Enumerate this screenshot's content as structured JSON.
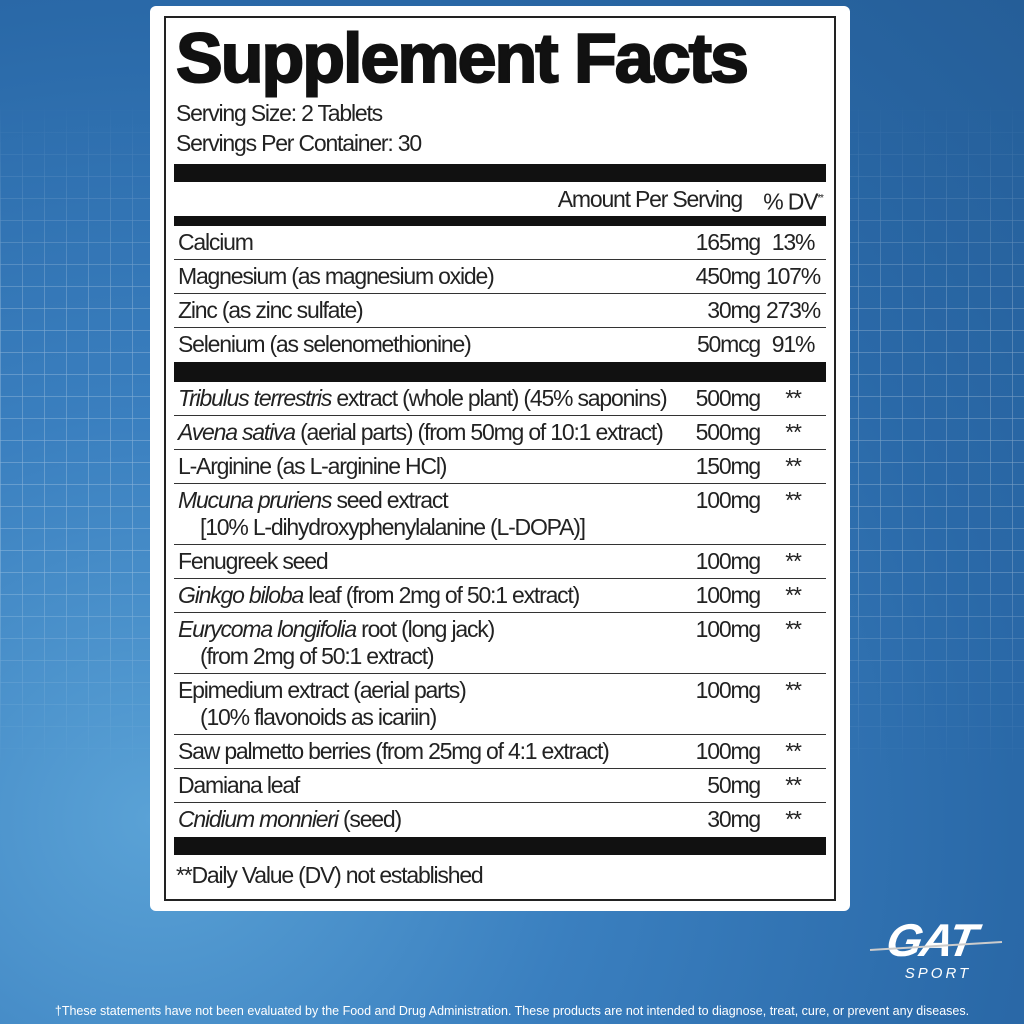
{
  "title": "Supplement Facts",
  "serving_size": "Serving Size: 2 Tablets",
  "servings_per_container": "Servings Per Container: 30",
  "header": {
    "amount": "Amount Per Serving",
    "dv": "% DV",
    "dv_mark": "**"
  },
  "minerals": [
    {
      "name": "Calcium",
      "amount": "165mg",
      "dv": "13%"
    },
    {
      "name": "Magnesium (as magnesium oxide)",
      "amount": "450mg",
      "dv": "107%"
    },
    {
      "name": "Zinc (as zinc sulfate)",
      "amount": "30mg",
      "dv": "273%"
    },
    {
      "name": "Selenium (as selenomethionine)",
      "amount": "50mcg",
      "dv": "91%"
    }
  ],
  "ingredients": [
    {
      "italic": "Tribulus terrestris",
      "name": " extract (whole plant) (45% saponins)",
      "sub": "",
      "amount": "500mg",
      "dv": "**"
    },
    {
      "italic": "Avena sativa",
      "name": " (aerial parts) (from 50mg of 10:1 extract)",
      "sub": "",
      "amount": "500mg",
      "dv": "**"
    },
    {
      "italic": "",
      "name": "L-Arginine (as L-arginine HCl)",
      "sub": "",
      "amount": "150mg",
      "dv": "**"
    },
    {
      "italic": "Mucuna pruriens",
      "name": " seed extract",
      "sub": "[10% L-dihydroxyphenylalanine (L-DOPA)]",
      "amount": "100mg",
      "dv": "**"
    },
    {
      "italic": "",
      "name": "Fenugreek seed",
      "sub": "",
      "amount": "100mg",
      "dv": "**"
    },
    {
      "italic": "Ginkgo biloba",
      "name": " leaf (from 2mg of 50:1 extract)",
      "sub": "",
      "amount": "100mg",
      "dv": "**"
    },
    {
      "italic": "Eurycoma longifolia",
      "name": " root (long jack)",
      "sub": "(from 2mg of 50:1 extract)",
      "amount": "100mg",
      "dv": "**"
    },
    {
      "italic": "",
      "name": "Epimedium extract (aerial parts)",
      "sub": "(10% flavonoids as icariin)",
      "amount": "100mg",
      "dv": "**"
    },
    {
      "italic": "",
      "name": "Saw palmetto berries (from 25mg of 4:1 extract)",
      "sub": "",
      "amount": "100mg",
      "dv": "**"
    },
    {
      "italic": "",
      "name": "Damiana leaf",
      "sub": "",
      "amount": "50mg",
      "dv": "**"
    },
    {
      "italic": "Cnidium monnieri",
      "name": " (seed)",
      "sub": "",
      "amount": "30mg",
      "dv": "**"
    }
  ],
  "footnote": "**Daily Value (DV) not established",
  "disclaimer": "†These statements have not been evaluated by the Food and Drug Administration. These products are not intended to diagnose, treat, cure, or prevent any diseases.",
  "logo": {
    "brand": "GAT",
    "sub": "SPORT"
  }
}
